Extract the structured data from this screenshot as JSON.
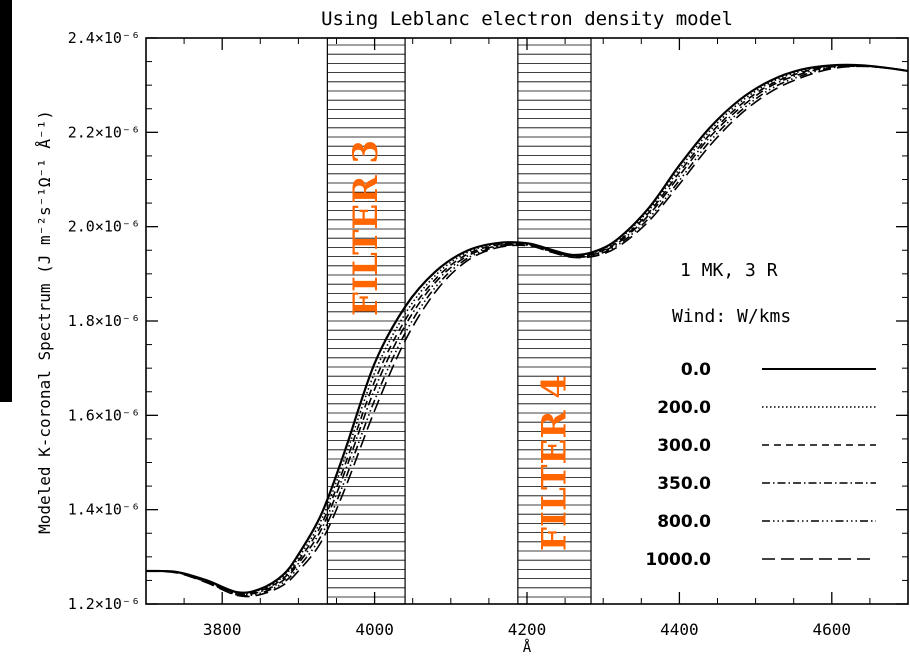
{
  "chart_data": {
    "type": "line",
    "title": "Using Leblanc electron density model",
    "xlabel": "Å",
    "ylabel": "Modeled K-coronal Spectrum (J m⁻²s⁻¹Ω⁻¹ Å⁻¹)",
    "xlim": [
      3700,
      4700
    ],
    "ylim": [
      1.2e-06,
      2.4e-06
    ],
    "x_ticks": [
      "3800",
      "4000",
      "4200",
      "4400",
      "4600"
    ],
    "y_ticks": [
      "1.2×10⁻⁶",
      "1.4×10⁻⁶",
      "1.6×10⁻⁶",
      "1.8×10⁻⁶",
      "2.0×10⁻⁶",
      "2.2×10⁻⁶",
      "2.4×10⁻⁶"
    ],
    "bands": [
      {
        "label": "FILTER 3",
        "x0": 3938,
        "x1": 4040,
        "color": "#ff6600"
      },
      {
        "label": "FILTER 4",
        "x0": 4188,
        "x1": 4284,
        "color": "#ff6600"
      }
    ],
    "annotation_lines": [
      "1 MK,  3 R",
      "Wind: W/kms"
    ],
    "legend_position": "right",
    "x": [
      3700,
      3740,
      3780,
      3820,
      3850,
      3880,
      3900,
      3930,
      3960,
      4000,
      4040,
      4080,
      4120,
      4160,
      4200,
      4230,
      4260,
      4290,
      4320,
      4360,
      4400,
      4440,
      4480,
      4520,
      4560,
      4600,
      4640,
      4680,
      4700
    ],
    "series": [
      {
        "name": "0.0",
        "dash": "",
        "values": [
          1.27e-06,
          1.268e-06,
          1.25e-06,
          1.225e-06,
          1.232e-06,
          1.262e-06,
          1.305e-06,
          1.39e-06,
          1.52e-06,
          1.71e-06,
          1.83e-06,
          1.905e-06,
          1.948e-06,
          1.965e-06,
          1.965e-06,
          1.952e-06,
          1.94e-06,
          1.948e-06,
          1.975e-06,
          2.04e-06,
          2.13e-06,
          2.21e-06,
          2.27e-06,
          2.31e-06,
          2.333e-06,
          2.342e-06,
          2.342e-06,
          2.335e-06,
          2.33e-06
        ]
      },
      {
        "name": "200.0",
        "dash": "1.5,2.5",
        "values": [
          1.27e-06,
          1.268e-06,
          1.249e-06,
          1.224e-06,
          1.23e-06,
          1.258e-06,
          1.298e-06,
          1.378e-06,
          1.505e-06,
          1.69e-06,
          1.815e-06,
          1.897e-06,
          1.944e-06,
          1.963e-06,
          1.964e-06,
          1.951e-06,
          1.939e-06,
          1.946e-06,
          1.972e-06,
          2.035e-06,
          2.122e-06,
          2.203e-06,
          2.264e-06,
          2.306e-06,
          2.33e-06,
          2.341e-06,
          2.342e-06,
          2.335e-06,
          2.33e-06
        ]
      },
      {
        "name": "300.0",
        "dash": "7,5",
        "values": [
          1.27e-06,
          1.268e-06,
          1.248e-06,
          1.222e-06,
          1.228e-06,
          1.254e-06,
          1.292e-06,
          1.368e-06,
          1.49e-06,
          1.672e-06,
          1.802e-06,
          1.889e-06,
          1.94e-06,
          1.961e-06,
          1.963e-06,
          1.95e-06,
          1.938e-06,
          1.944e-06,
          1.969e-06,
          2.03e-06,
          2.115e-06,
          2.196e-06,
          2.258e-06,
          2.302e-06,
          2.327e-06,
          2.34e-06,
          2.341e-06,
          2.335e-06,
          2.33e-06
        ]
      },
      {
        "name": "350.0",
        "dash": "8,3,1.5,3",
        "values": [
          1.27e-06,
          1.267e-06,
          1.247e-06,
          1.221e-06,
          1.226e-06,
          1.25e-06,
          1.286e-06,
          1.358e-06,
          1.476e-06,
          1.655e-06,
          1.79e-06,
          1.882e-06,
          1.936e-06,
          1.959e-06,
          1.962e-06,
          1.949e-06,
          1.937e-06,
          1.942e-06,
          1.966e-06,
          2.025e-06,
          2.108e-06,
          2.19e-06,
          2.252e-06,
          2.298e-06,
          2.324e-06,
          2.339e-06,
          2.341e-06,
          2.335e-06,
          2.33e-06
        ]
      },
      {
        "name": "800.0",
        "dash": "8,3,1.5,3,1.5,3,1.5,3",
        "values": [
          1.27e-06,
          1.267e-06,
          1.246e-06,
          1.219e-06,
          1.223e-06,
          1.245e-06,
          1.278e-06,
          1.345e-06,
          1.458e-06,
          1.632e-06,
          1.774e-06,
          1.872e-06,
          1.931e-06,
          1.957e-06,
          1.961e-06,
          1.948e-06,
          1.936e-06,
          1.94e-06,
          1.962e-06,
          2.018e-06,
          2.098e-06,
          2.181e-06,
          2.245e-06,
          2.292e-06,
          2.32e-06,
          2.337e-06,
          2.34e-06,
          2.335e-06,
          2.33e-06
        ]
      },
      {
        "name": "1000.0",
        "dash": "13,6",
        "values": [
          1.27e-06,
          1.266e-06,
          1.245e-06,
          1.218e-06,
          1.22e-06,
          1.24e-06,
          1.27e-06,
          1.332e-06,
          1.44e-06,
          1.61e-06,
          1.758e-06,
          1.862e-06,
          1.926e-06,
          1.955e-06,
          1.96e-06,
          1.947e-06,
          1.935e-06,
          1.938e-06,
          1.958e-06,
          2.012e-06,
          2.09e-06,
          2.172e-06,
          2.238e-06,
          2.286e-06,
          2.316e-06,
          2.335e-06,
          2.34e-06,
          2.335e-06,
          2.33e-06
        ]
      }
    ]
  }
}
